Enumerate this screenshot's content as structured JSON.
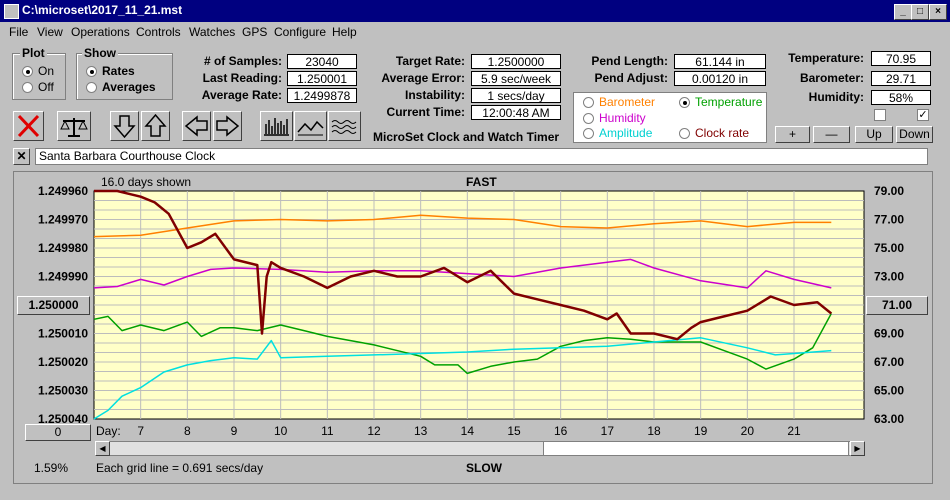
{
  "window": {
    "title": "C:\\microset\\2017_11_21.mst"
  },
  "menu": [
    "File",
    "View",
    "Operations",
    "Controls",
    "Watches",
    "GPS",
    "Configure",
    "Help"
  ],
  "plot_group": {
    "title": "Plot",
    "options": [
      "On",
      "Off"
    ],
    "selected": "On"
  },
  "show_group": {
    "title": "Show",
    "options": [
      "Rates",
      "Averages"
    ],
    "selected": "Rates"
  },
  "stats": {
    "samples_label": "# of Samples:",
    "samples": "23040",
    "last_reading_label": "Last Reading:",
    "last_reading": "1.250001",
    "avg_rate_label": "Average Rate:",
    "avg_rate": "1.2499878"
  },
  "rates": {
    "target_label": "Target Rate:",
    "target": "1.2500000",
    "avg_error_label": "Average Error:",
    "avg_error": "5.9 sec/week",
    "instability_label": "Instability:",
    "instability": "1 secs/day",
    "current_time_label": "Current Time:",
    "current_time": "12:00:48 AM"
  },
  "app_name": "MicroSet Clock and Watch Timer",
  "pendulum": {
    "length_label": "Pend Length:",
    "length": "61.144 in",
    "adjust_label": "Pend Adjust:",
    "adjust": "0.00120 in"
  },
  "legend": {
    "barometer": "Barometer",
    "temperature": "Temperature",
    "humidity": "Humidity",
    "amplitude": "Amplitude",
    "clock_rate": "Clock rate",
    "selected": "Temperature",
    "colors": {
      "barometer": "#ff8000",
      "temperature": "#00a000",
      "humidity": "#cc00cc",
      "amplitude": "#00e0e0",
      "clock_rate": "#800000"
    }
  },
  "env": {
    "temperature_label": "Temperature:",
    "temperature": "70.95",
    "barometer_label": "Barometer:",
    "barometer": "29.71",
    "humidity_label": "Humidity:",
    "humidity": "58%"
  },
  "adj_buttons": [
    "+",
    "—",
    "Up",
    "Down"
  ],
  "toolbar_icons": [
    "clear-x-icon",
    "balance-scale-icon",
    "arrow-down-icon",
    "arrow-up-icon",
    "arrow-left-icon",
    "arrow-right-icon",
    "bar-graph-icon",
    "line-graph-icon",
    "wave-graph-icon"
  ],
  "clock_name": "Santa Barbara Courthouse Clock",
  "chart": {
    "days_shown": "16.0 days shown",
    "top_label": "FAST",
    "bottom_label": "SLOW",
    "left_button": "1.250000",
    "right_button": "71.00",
    "zero_button": "0",
    "day_prefix": "Day:",
    "percent": "1.59%",
    "grid_note": "Each grid line = 0.691 secs/day"
  },
  "chart_data": {
    "type": "line",
    "x_ticks": [
      "7",
      "8",
      "9",
      "10",
      "11",
      "12",
      "13",
      "14",
      "15",
      "16",
      "17",
      "18",
      "19",
      "20",
      "21"
    ],
    "xlim": [
      6.0,
      22.5
    ],
    "y_left_ticks": [
      "1.249960",
      "1.249970",
      "1.249980",
      "1.249990",
      "1.250000",
      "1.250010",
      "1.250020",
      "1.250030",
      "1.250040"
    ],
    "ylim_left": [
      1.24996,
      1.25004
    ],
    "y_right_ticks": [
      "79.00",
      "77.00",
      "75.00",
      "73.00",
      "71.00",
      "69.00",
      "67.00",
      "65.00",
      "63.00"
    ],
    "ylim_right": [
      63,
      79
    ],
    "series": [
      {
        "name": "Barometer",
        "color": "#ff8000",
        "x": [
          6.0,
          7.0,
          8.0,
          9.0,
          10.0,
          11.0,
          12.0,
          13.0,
          14.0,
          15.0,
          16.0,
          17.0,
          18.0,
          19.0,
          20.0,
          21.0,
          21.8
        ],
        "y": [
          75.8,
          75.9,
          76.4,
          76.9,
          77.0,
          76.9,
          77.0,
          77.3,
          77.1,
          77.0,
          76.5,
          76.4,
          76.7,
          76.9,
          76.5,
          76.8,
          76.8
        ]
      },
      {
        "name": "Humidity",
        "color": "#cc00cc",
        "x": [
          6.0,
          6.5,
          7.0,
          7.5,
          8.0,
          8.5,
          9.0,
          10.0,
          11.0,
          12.0,
          13.0,
          14.0,
          15.0,
          16.0,
          17.0,
          17.5,
          18.0,
          19.0,
          20.0,
          20.4,
          21.0,
          21.8
        ],
        "y": [
          72.2,
          72.3,
          72.8,
          72.4,
          73.0,
          73.5,
          73.6,
          73.5,
          73.3,
          73.4,
          73.4,
          73.2,
          73.0,
          73.6,
          74.0,
          74.2,
          73.6,
          72.7,
          72.2,
          73.4,
          72.8,
          72.2
        ]
      },
      {
        "name": "Temperature",
        "color": "#00a000",
        "x": [
          6.0,
          6.3,
          6.6,
          7.0,
          7.5,
          8.0,
          8.3,
          8.7,
          9.0,
          9.5,
          10.0,
          10.5,
          11.0,
          12.0,
          13.0,
          13.3,
          13.8,
          14.0,
          14.5,
          15.0,
          15.5,
          16.0,
          16.5,
          17.0,
          17.5,
          18.0,
          18.5,
          19.0,
          19.5,
          20.0,
          20.4,
          21.0,
          21.4,
          21.8
        ],
        "y": [
          70.0,
          70.2,
          69.2,
          69.6,
          69.2,
          69.8,
          68.8,
          69.4,
          69.4,
          69.2,
          69.6,
          69.2,
          68.8,
          68.2,
          67.4,
          66.8,
          66.8,
          66.2,
          66.7,
          67.0,
          67.2,
          68.1,
          68.5,
          68.7,
          68.6,
          68.4,
          68.4,
          68.4,
          67.8,
          67.2,
          66.5,
          67.2,
          68.0,
          70.4
        ]
      },
      {
        "name": "Amplitude",
        "color": "#00e0e0",
        "x": [
          6.0,
          6.3,
          6.6,
          7.0,
          7.5,
          8.0,
          8.5,
          9.0,
          9.5,
          9.8,
          10.0,
          11.0,
          12.0,
          13.0,
          14.0,
          15.0,
          16.0,
          17.0,
          18.0,
          19.0,
          20.0,
          20.6,
          21.0,
          21.8
        ],
        "y": [
          63.0,
          63.6,
          64.6,
          65.2,
          66.3,
          66.8,
          67.1,
          67.3,
          67.2,
          68.5,
          67.3,
          67.4,
          67.5,
          67.6,
          67.7,
          67.9,
          68.0,
          68.1,
          68.4,
          68.7,
          68.0,
          67.5,
          67.6,
          67.8
        ]
      },
      {
        "name": "Clock rate",
        "color": "#800000",
        "x": [
          6.0,
          6.5,
          7.0,
          7.3,
          7.6,
          8.0,
          8.3,
          8.6,
          9.0,
          9.5,
          9.6,
          9.7,
          9.8,
          10.0,
          10.5,
          11.0,
          11.5,
          12.0,
          12.5,
          13.0,
          13.5,
          14.0,
          14.5,
          15.0,
          15.5,
          16.0,
          16.5,
          17.0,
          17.2,
          17.5,
          18.0,
          18.5,
          18.8,
          19.0,
          19.5,
          20.0,
          20.5,
          21.0,
          21.5,
          21.8
        ],
        "y": [
          1.249957,
          1.24996,
          1.249962,
          1.249964,
          1.249968,
          1.24998,
          1.249978,
          1.249975,
          1.249984,
          1.249986,
          1.25001,
          1.24999,
          1.249985,
          1.249987,
          1.24999,
          1.249994,
          1.24999,
          1.249988,
          1.24999,
          1.24999,
          1.249987,
          1.249992,
          1.249988,
          1.249996,
          1.249998,
          1.25,
          1.250002,
          1.250005,
          1.250003,
          1.25001,
          1.25001,
          1.250012,
          1.250008,
          1.250006,
          1.250004,
          1.250002,
          1.249997,
          1.25,
          1.249999,
          1.250003
        ]
      }
    ]
  }
}
